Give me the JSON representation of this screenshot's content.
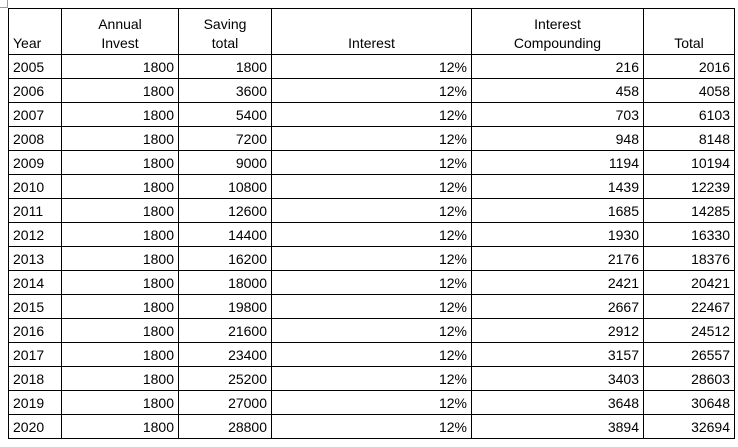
{
  "table": {
    "headers": [
      {
        "lines": [
          "",
          "Year"
        ]
      },
      {
        "lines": [
          "Annual",
          "Invest"
        ]
      },
      {
        "lines": [
          "Saving",
          "total"
        ]
      },
      {
        "lines": [
          "",
          "Interest"
        ]
      },
      {
        "lines": [
          "Interest",
          "Compounding"
        ]
      },
      {
        "lines": [
          "",
          "Total"
        ]
      }
    ],
    "rows": [
      [
        "2005",
        "1800",
        "1800",
        "12%",
        "216",
        "2016"
      ],
      [
        "2006",
        "1800",
        "3600",
        "12%",
        "458",
        "4058"
      ],
      [
        "2007",
        "1800",
        "5400",
        "12%",
        "703",
        "6103"
      ],
      [
        "2008",
        "1800",
        "7200",
        "12%",
        "948",
        "8148"
      ],
      [
        "2009",
        "1800",
        "9000",
        "12%",
        "1194",
        "10194"
      ],
      [
        "2010",
        "1800",
        "10800",
        "12%",
        "1439",
        "12239"
      ],
      [
        "2011",
        "1800",
        "12600",
        "12%",
        "1685",
        "14285"
      ],
      [
        "2012",
        "1800",
        "14400",
        "12%",
        "1930",
        "16330"
      ],
      [
        "2013",
        "1800",
        "16200",
        "12%",
        "2176",
        "18376"
      ],
      [
        "2014",
        "1800",
        "18000",
        "12%",
        "2421",
        "20421"
      ],
      [
        "2015",
        "1800",
        "19800",
        "12%",
        "2667",
        "22467"
      ],
      [
        "2016",
        "1800",
        "21600",
        "12%",
        "2912",
        "24512"
      ],
      [
        "2017",
        "1800",
        "23400",
        "12%",
        "3157",
        "26557"
      ],
      [
        "2018",
        "1800",
        "25200",
        "12%",
        "3403",
        "28603"
      ],
      [
        "2019",
        "1800",
        "27000",
        "12%",
        "3648",
        "30648"
      ],
      [
        "2020",
        "1800",
        "28800",
        "12%",
        "3894",
        "32694"
      ]
    ]
  }
}
